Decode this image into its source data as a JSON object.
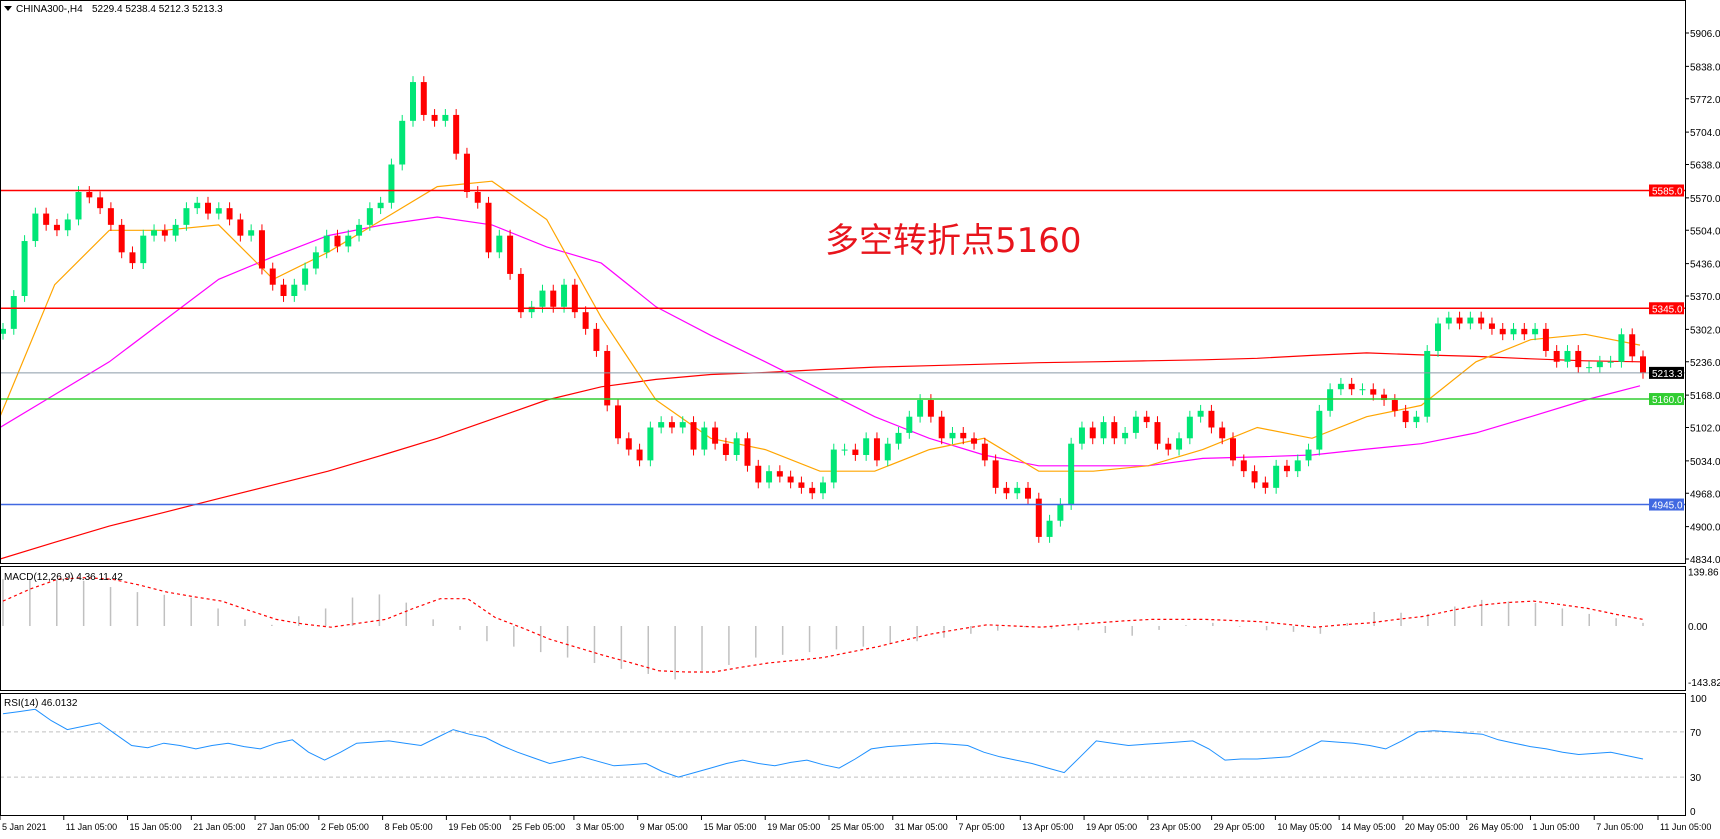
{
  "header": {
    "symbol": "CHINA300-,H4",
    "ohlc": "5229.4 5238.4 5212.3 5213.3"
  },
  "annotation": "多空转折点5160",
  "colors": {
    "bull": "#00e676",
    "bear": "#ff0000",
    "ma_fast": "#ffa500",
    "ma_mid": "#ff00ff",
    "ma_slow": "#ff0000",
    "rsi": "#1e90ff",
    "macd_hist": "#c0c0c0",
    "macd_signal": "#ff0000"
  },
  "chart_data": [
    {
      "type": "candlestick",
      "ylim": [
        4834,
        5906
      ],
      "y_ticks": [
        "5906.0",
        "5838.0",
        "5772.0",
        "5704.0",
        "5638.0",
        "5570.0",
        "5504.0",
        "5436.0",
        "5370.0",
        "5302.0",
        "5236.0",
        "5168.0",
        "5102.0",
        "5034.0",
        "4968.0",
        "4900.0",
        "4834.0"
      ],
      "x_ticks": [
        "5 Jan 2021",
        "11 Jan 05:00",
        "15 Jan 05:00",
        "21 Jan 05:00",
        "27 Jan 05:00",
        "2 Feb 05:00",
        "8 Feb 05:00",
        "19 Feb 05:00",
        "25 Feb 05:00",
        "3 Mar 05:00",
        "9 Mar 05:00",
        "15 Mar 05:00",
        "19 Mar 05:00",
        "25 Mar 05:00",
        "31 Mar 05:00",
        "7 Apr 05:00",
        "13 Apr 05:00",
        "19 Apr 05:00",
        "23 Apr 05:00",
        "29 Apr 05:00",
        "10 May 05:00",
        "14 May 05:00",
        "20 May 05:00",
        "26 May 05:00",
        "1 Jun 05:00",
        "7 Jun 05:00",
        "11 Jun 05:00"
      ],
      "closes": [
        5303,
        5370,
        5482,
        5538,
        5515,
        5504,
        5526,
        5582,
        5571,
        5549,
        5515,
        5459,
        5437,
        5493,
        5504,
        5493,
        5515,
        5549,
        5560,
        5538,
        5549,
        5526,
        5493,
        5504,
        5426,
        5393,
        5370,
        5393,
        5426,
        5459,
        5493,
        5471,
        5493,
        5515,
        5549,
        5560,
        5638,
        5727,
        5806,
        5739,
        5727,
        5739,
        5660,
        5582,
        5560,
        5459,
        5493,
        5415,
        5337,
        5348,
        5381,
        5348,
        5393,
        5337,
        5303,
        5258,
        5147,
        5080,
        5057,
        5035,
        5102,
        5113,
        5102,
        5113,
        5057,
        5102,
        5069,
        5046,
        5080,
        5024,
        4990,
        5013,
        5002,
        4990,
        4979,
        4968,
        4990,
        5057,
        5057,
        5046,
        5080,
        5035,
        5069,
        5091,
        5124,
        5158,
        5124,
        5080,
        5091,
        5080,
        5069,
        5035,
        4979,
        4968,
        4979,
        4957,
        4879,
        4912,
        4946,
        5069,
        5102,
        5080,
        5113,
        5080,
        5091,
        5124,
        5113,
        5069,
        5057,
        5080,
        5124,
        5136,
        5102,
        5080,
        5035,
        5013,
        4990,
        4979,
        5024,
        5013,
        5035,
        5057,
        5136,
        5180,
        5191,
        5180,
        5180,
        5169,
        5158,
        5136,
        5113,
        5124,
        5258,
        5314,
        5326,
        5314,
        5326,
        5314,
        5303,
        5292,
        5303,
        5292,
        5303,
        5258,
        5236,
        5258,
        5225,
        5225,
        5236,
        5236,
        5292,
        5247,
        5213.3
      ],
      "moving_averages": {
        "fast": [
          5124,
          5393,
          5504,
          5504,
          5515,
          5404,
          5459,
          5526,
          5593,
          5604,
          5526,
          5326,
          5158,
          5080,
          5057,
          5013,
          5013,
          5057,
          5080,
          5013,
          5013,
          5024,
          5057,
          5102,
          5080,
          5124,
          5147,
          5236,
          5281,
          5292,
          5270
        ],
        "mid": [
          5102,
          5169,
          5236,
          5320,
          5404,
          5450,
          5493,
          5515,
          5531,
          5515,
          5470,
          5437,
          5348,
          5290,
          5236,
          5180,
          5124,
          5080,
          5046,
          5024,
          5024,
          5024,
          5039,
          5042,
          5046,
          5058,
          5069,
          5091,
          5124,
          5158,
          5187
        ],
        "slow": [
          4834,
          4868,
          4901,
          4929,
          4957,
          4985,
          5013,
          5046,
          5080,
          5119,
          5158,
          5185,
          5200,
          5210,
          5214,
          5220,
          5225,
          5228,
          5231,
          5234,
          5236,
          5238,
          5240,
          5243,
          5249,
          5254,
          5250,
          5247,
          5242,
          5238,
          5236
        ]
      },
      "levels": [
        {
          "value": 5585,
          "label": "5585.0",
          "color": "#ff0000"
        },
        {
          "value": 5345,
          "label": "5345.0",
          "color": "#ff0000"
        },
        {
          "value": 5160,
          "label": "5160.0",
          "color": "#32cd32"
        },
        {
          "value": 4945,
          "label": "4945.0",
          "color": "#4169e1"
        }
      ],
      "current_price": {
        "value": 5213.3,
        "label": "5213.3"
      }
    },
    {
      "type": "bar",
      "title": "MACD(12,26,9) 4.36 11.42",
      "ylim": [
        -143.82,
        139.86
      ],
      "y_ticks": [
        "139.86",
        "0.00",
        "-143.82"
      ],
      "histogram": [
        120,
        120,
        118,
        116,
        100,
        87,
        80,
        73,
        45,
        17,
        3,
        25,
        45,
        73,
        81,
        60,
        17,
        -10,
        -39,
        -53,
        -67,
        -81,
        -95,
        -110,
        -123,
        -137,
        -115,
        -100,
        -81,
        -74,
        -67,
        -60,
        -53,
        -46,
        -39,
        -30,
        -20,
        -12,
        -3,
        -7,
        -11,
        -18,
        -25,
        -10,
        2,
        8,
        -2,
        -11,
        -15,
        -20,
        8,
        36,
        34,
        31,
        50,
        67,
        63,
        59,
        45,
        31,
        20,
        8
      ],
      "signal": [
        64,
        95,
        120,
        124,
        120,
        105,
        87,
        75,
        64,
        40,
        17,
        5,
        -3,
        7,
        17,
        45,
        70,
        70,
        22,
        -5,
        -34,
        -55,
        -76,
        -95,
        -115,
        -118,
        -118,
        -106,
        -95,
        -88,
        -81,
        -67,
        -53,
        -36,
        -20,
        -8,
        3,
        0,
        -3,
        3,
        8,
        13,
        17,
        17,
        17,
        14,
        11,
        4,
        -3,
        3,
        8,
        17,
        25,
        40,
        53,
        60,
        64,
        55,
        45,
        30,
        17
      ]
    },
    {
      "type": "line",
      "title": "RSI(14) 46.0132",
      "ylim": [
        0,
        100
      ],
      "y_ticks": [
        "100",
        "70",
        "30",
        "0"
      ],
      "levels": [
        70,
        30
      ],
      "values": [
        86,
        88,
        90,
        80,
        72,
        75,
        78,
        68,
        58,
        56,
        60,
        58,
        55,
        58,
        60,
        57,
        55,
        60,
        63,
        52,
        45,
        52,
        60,
        61,
        62,
        60,
        58,
        65,
        72,
        68,
        65,
        58,
        52,
        47,
        42,
        45,
        48,
        44,
        40,
        41,
        42,
        35,
        30,
        34,
        38,
        42,
        45,
        42,
        40,
        43,
        45,
        41,
        38,
        46,
        55,
        57,
        58,
        59,
        60,
        59,
        58,
        52,
        48,
        45,
        42,
        38,
        34,
        48,
        62,
        60,
        58,
        59,
        60,
        61,
        62,
        55,
        45,
        46,
        46,
        47,
        48,
        55,
        62,
        61,
        60,
        58,
        55,
        62,
        70,
        71,
        70,
        69,
        68,
        63,
        60,
        57,
        55,
        52,
        50,
        51,
        52,
        49,
        46
      ]
    }
  ]
}
